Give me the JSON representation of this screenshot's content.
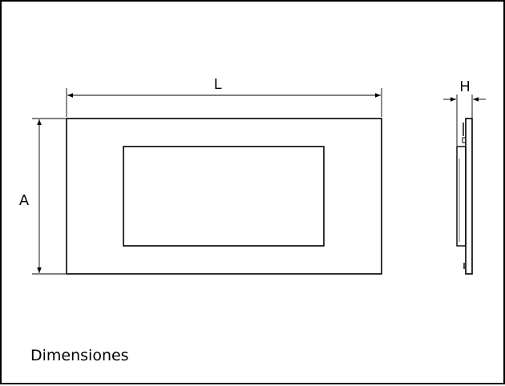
{
  "caption": "Dimensiones",
  "dimensions": {
    "length_label": "L",
    "height_label": "A",
    "depth_label": "H"
  },
  "colors": {
    "stroke": "#000000",
    "background": "#ffffff"
  }
}
